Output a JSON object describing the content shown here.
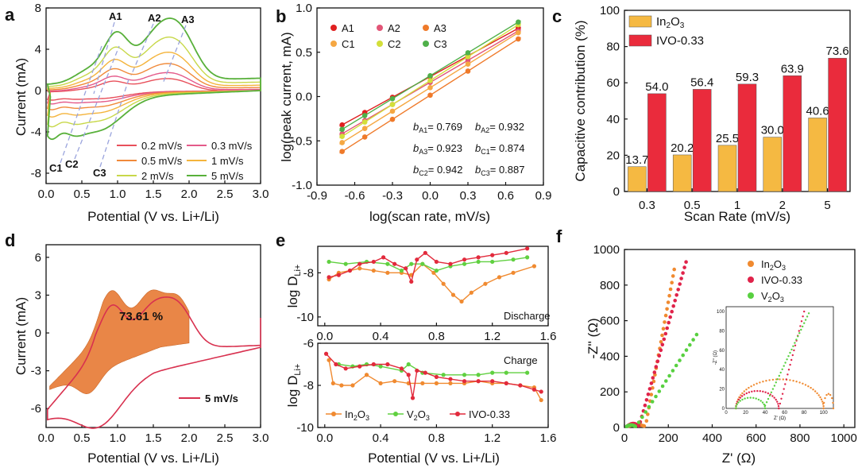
{
  "chart_data": [
    {
      "panel": "a",
      "type": "line",
      "xlabel": "Potential (V vs. Li+/Li)",
      "ylabel": "Current (mA)",
      "xlim": [
        0,
        3.0
      ],
      "ylim": [
        -9,
        8
      ],
      "xticks": [
        "0.0",
        "0.5",
        "1.0",
        "1.5",
        "2.0",
        "2.5",
        "3.0"
      ],
      "yticks": [
        "-8",
        "-4",
        "0",
        "4",
        "8"
      ],
      "peak_labels": [
        "A1",
        "A2",
        "A3",
        "C1",
        "C2",
        "C3"
      ],
      "series": [
        {
          "name": "0.2 mV/s",
          "color": "#e8505b",
          "scale": 0.2
        },
        {
          "name": "0.3 mV/s",
          "color": "#e45a8a",
          "scale": 0.28
        },
        {
          "name": "0.5 mV/s",
          "color": "#f08a3a",
          "scale": 0.4
        },
        {
          "name": "1 mV/s",
          "color": "#f4b43c",
          "scale": 0.55
        },
        {
          "name": "2 mV/s",
          "color": "#c8d84a",
          "scale": 0.75
        },
        {
          "name": "5 mV/s",
          "color": "#58b03a",
          "scale": 1.0
        }
      ]
    },
    {
      "panel": "b",
      "type": "scatter",
      "xlabel": "log(scan rate, mV/s)",
      "ylabel": "log(peak current, mA)",
      "xlim": [
        -0.9,
        0.9
      ],
      "ylim": [
        -1.0,
        1.0
      ],
      "xticks": [
        "-0.9",
        "-0.6",
        "-0.3",
        "0.0",
        "0.3",
        "0.6",
        "0.9"
      ],
      "yticks": [
        "-1.0",
        "-0.5",
        "0.0",
        "0.5",
        "1.0"
      ],
      "x": [
        -0.7,
        -0.52,
        -0.3,
        0.0,
        0.3,
        0.7
      ],
      "series": [
        {
          "name": "A1",
          "color": "#e02020",
          "y0": -0.32,
          "y1": 0.77
        },
        {
          "name": "A2",
          "color": "#e25577",
          "y0": -0.42,
          "y1": 0.74
        },
        {
          "name": "A3",
          "color": "#ef7a2a",
          "y0": -0.62,
          "y1": 0.65
        },
        {
          "name": "C1",
          "color": "#f5a742",
          "y0": -0.52,
          "y1": 0.72
        },
        {
          "name": "C2",
          "color": "#d3df3a",
          "y0": -0.45,
          "y1": 0.81
        },
        {
          "name": "C3",
          "color": "#4fb04a",
          "y0": -0.37,
          "y1": 0.84
        }
      ],
      "b_values": [
        [
          "b",
          "A1",
          "= 0.769",
          "b",
          "A2",
          "= 0.932"
        ],
        [
          "b",
          "A3",
          "= 0.923",
          "b",
          "C1",
          "= 0.874"
        ],
        [
          "b",
          "C2",
          "= 0.942",
          "b",
          "C3",
          "= 0.887"
        ]
      ]
    },
    {
      "panel": "c",
      "type": "bar",
      "xlabel": "Scan Rate (mV/s)",
      "ylabel": "Capacitive contribution (%)",
      "categories": [
        "0.3",
        "0.5",
        "1",
        "2",
        "5"
      ],
      "ylim": [
        0,
        100
      ],
      "yticks": [
        "0",
        "20",
        "40",
        "60",
        "80",
        "100"
      ],
      "series": [
        {
          "name": "In2O3",
          "label_main": "In",
          "label_sub": "2",
          "label_tail": "O",
          "label_sub2": "3",
          "color": "#f5b942",
          "values": [
            13.7,
            20.2,
            25.5,
            30.0,
            40.6
          ],
          "labels": [
            "13.7",
            "20.2",
            "25.5",
            "30.0",
            "40.6"
          ]
        },
        {
          "name": "IVO-0.33",
          "color": "#ea2b3c",
          "values": [
            54.0,
            56.4,
            59.3,
            63.9,
            73.6
          ],
          "labels": [
            "54.0",
            "56.4",
            "59.3",
            "63.9",
            "73.6"
          ]
        }
      ]
    },
    {
      "panel": "d",
      "type": "area",
      "xlabel": "Potential (V vs. Li+/Li)",
      "ylabel": "Current (mA)",
      "xlim": [
        0,
        3.0
      ],
      "ylim": [
        -7.5,
        7
      ],
      "xticks": [
        "0.0",
        "0.5",
        "1.0",
        "1.5",
        "2.0",
        "2.5",
        "3.0"
      ],
      "yticks": [
        "-6",
        "-3",
        "0",
        "3",
        "6"
      ],
      "annotation": "73.61 %",
      "legend": "5 mV/s"
    },
    {
      "panel": "e",
      "type": "line",
      "xlabel": "Potential (V vs. Li+/Li)",
      "ylabel_main": "log D",
      "ylabel_sub": "Li+",
      "xticks": [
        "0.0",
        "0.4",
        "0.8",
        "1.2",
        "1.6"
      ],
      "top": {
        "label": "Discharge",
        "yticks": [
          "-8",
          "-10"
        ],
        "ylim": [
          -10.4,
          -6.8
        ]
      },
      "bottom": {
        "label": "Charge",
        "yticks": [
          "-6",
          "-8",
          "-10"
        ],
        "ylim": [
          -10,
          -6
        ]
      },
      "series": [
        {
          "name": "In2O3",
          "color": "#f08a30"
        },
        {
          "name": "V2O3",
          "color": "#60d040"
        },
        {
          "name": "IVO-0.33",
          "color": "#e22a3c"
        }
      ]
    },
    {
      "panel": "f",
      "type": "scatter",
      "xlabel": "Z' (Ω)",
      "ylabel": "-Z'' (Ω)",
      "xlim": [
        0,
        1050
      ],
      "ylim": [
        0,
        1000
      ],
      "xticks": [
        "0",
        "200",
        "400",
        "600",
        "800",
        "1000"
      ],
      "yticks": [
        "0",
        "200",
        "400",
        "600",
        "800",
        "1000"
      ],
      "series": [
        {
          "name": "In2O3",
          "color": "#f08a30"
        },
        {
          "name": "IVO-0.33",
          "color": "#e0234a"
        },
        {
          "name": "V2O3",
          "color": "#58d040"
        }
      ],
      "inset": {
        "xlabel": "Z' (Ω)",
        "ylabel": "-Z'' (Ω)",
        "xticks": [
          "0",
          "20",
          "40",
          "60",
          "80",
          "100"
        ],
        "yticks": [
          "0",
          "20",
          "40",
          "60",
          "80",
          "100"
        ]
      }
    }
  ],
  "panel_letters": [
    "a",
    "b",
    "c",
    "d",
    "e",
    "f"
  ],
  "legend_a": [
    "0.2 mV/s",
    "0.3 mV/s",
    "0.5 mV/s",
    "1 mV/s",
    "2 mV/s",
    "5 mV/s"
  ],
  "legend_b": [
    "A1",
    "A2",
    "A3",
    "C1",
    "C2",
    "C3"
  ]
}
